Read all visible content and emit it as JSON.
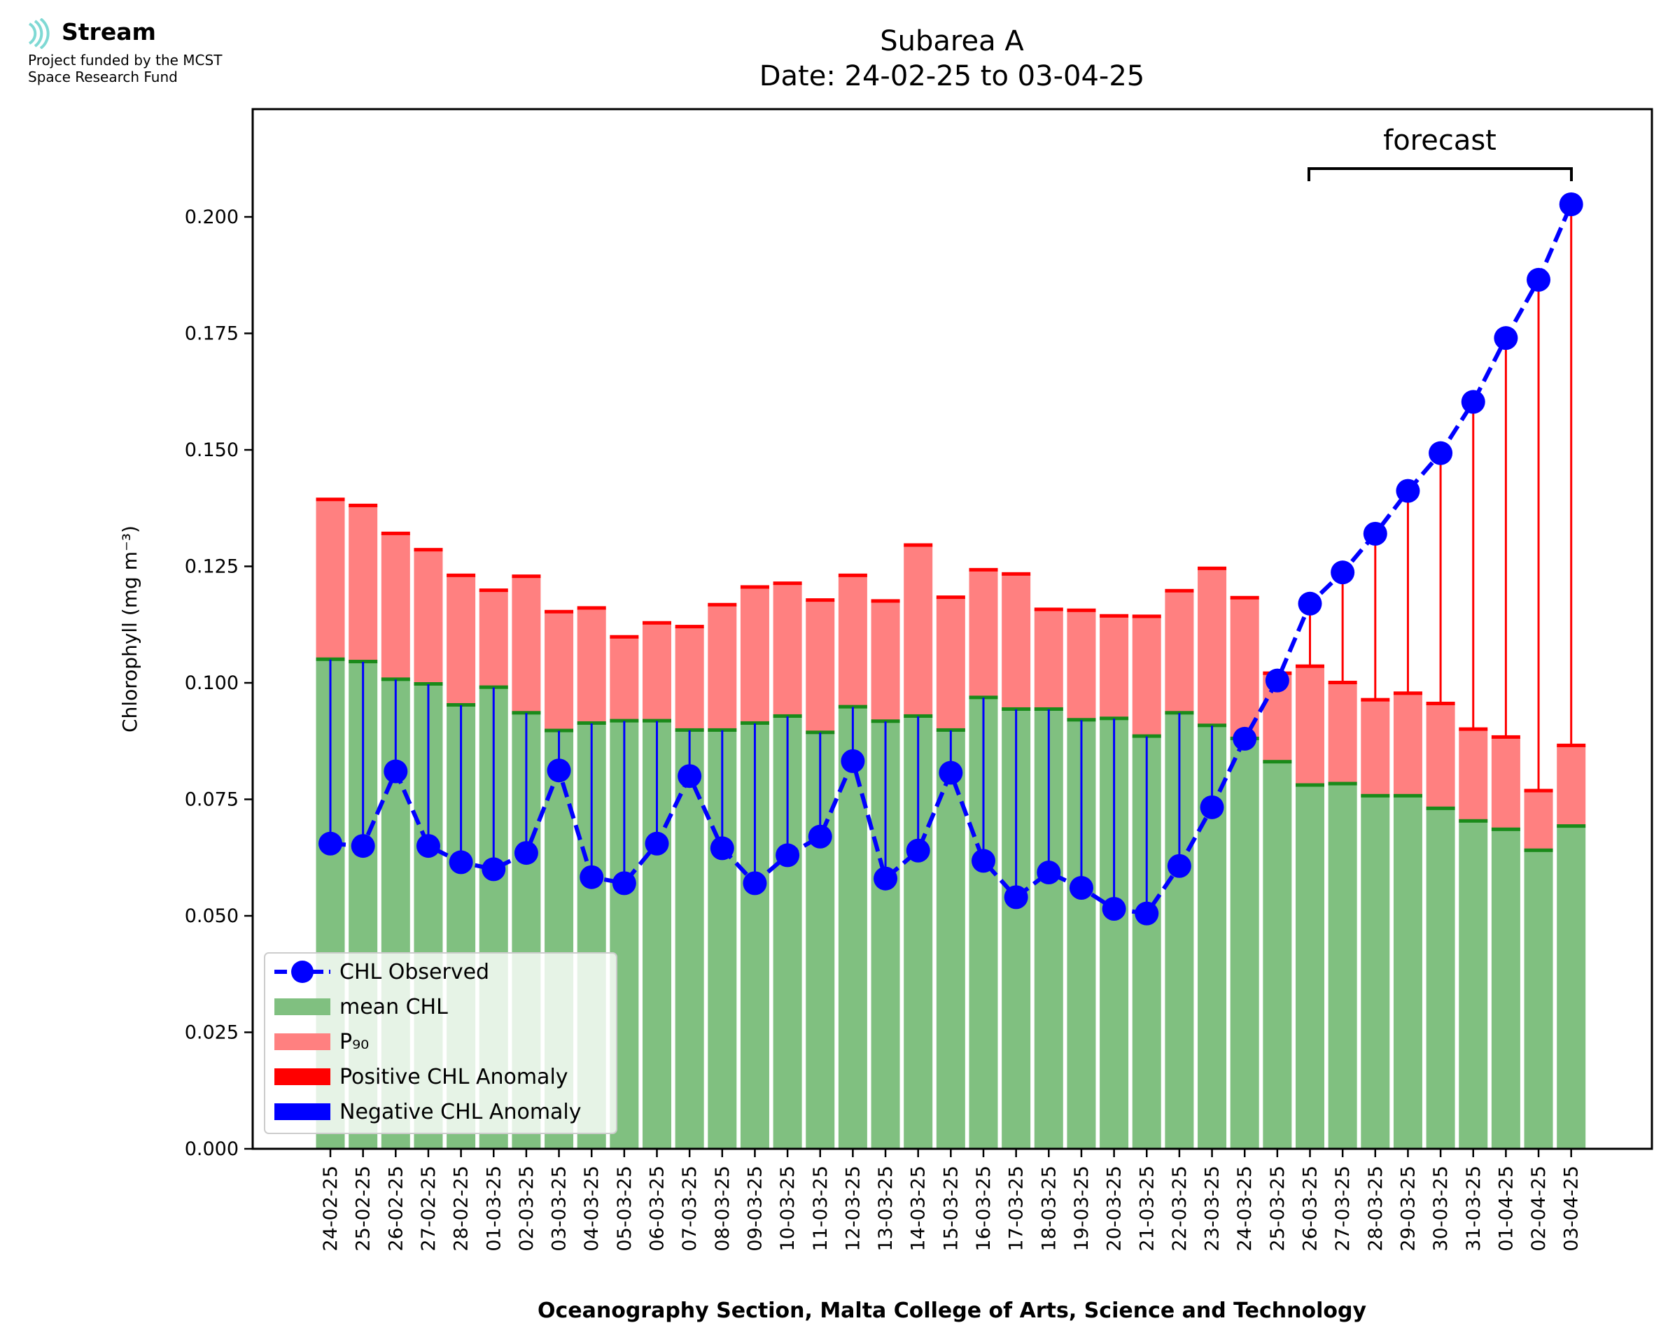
{
  "logo": {
    "name": "Stream",
    "line1": "Project funded by the MCST",
    "line2": "Space Research Fund",
    "icon": "stream-wave-icon",
    "color": "#7fd9d4"
  },
  "chart_data": {
    "type": "bar",
    "title": "Subarea A",
    "subtitle": "Date: 24-02-25 to 03-04-25",
    "xlabel": "Oceanography Section, Malta College of Arts, Science and Technology",
    "ylabel": "Chlorophyll (mg m⁻³)",
    "ylim": [
      0,
      0.2225
    ],
    "yticks": [
      "0.000",
      "0.025",
      "0.050",
      "0.075",
      "0.100",
      "0.125",
      "0.150",
      "0.175",
      "0.200"
    ],
    "categories": [
      "24-02-25",
      "25-02-25",
      "26-02-25",
      "27-02-25",
      "28-02-25",
      "01-03-25",
      "02-03-25",
      "03-03-25",
      "04-03-25",
      "05-03-25",
      "06-03-25",
      "07-03-25",
      "08-03-25",
      "09-03-25",
      "10-03-25",
      "11-03-25",
      "12-03-25",
      "13-03-25",
      "14-03-25",
      "15-03-25",
      "16-03-25",
      "17-03-25",
      "18-03-25",
      "19-03-25",
      "20-03-25",
      "21-03-25",
      "22-03-25",
      "23-03-25",
      "24-03-25",
      "25-03-25",
      "26-03-25",
      "27-03-25",
      "28-03-25",
      "29-03-25",
      "30-03-25",
      "31-03-25",
      "01-04-25",
      "02-04-25",
      "03-04-25"
    ],
    "series": [
      {
        "name": "CHL Observed",
        "type": "line",
        "color": "#0000ff",
        "values": [
          0.0655,
          0.065,
          0.081,
          0.065,
          0.0615,
          0.06,
          0.0635,
          0.0812,
          0.0583,
          0.057,
          0.0655,
          0.08,
          0.0645,
          0.057,
          0.063,
          0.067,
          0.0832,
          0.058,
          0.064,
          0.0807,
          0.0618,
          0.054,
          0.0593,
          0.056,
          0.0515,
          0.0505,
          0.0607,
          0.0733,
          0.088,
          0.1005,
          0.117,
          0.1237,
          0.132,
          0.1412,
          0.1493,
          0.1603,
          0.174,
          0.1865,
          0.2027
        ]
      },
      {
        "name": "mean CHL",
        "type": "bar",
        "color": "#80c080",
        "values": [
          0.105,
          0.1045,
          0.1007,
          0.0997,
          0.0952,
          0.099,
          0.0935,
          0.0897,
          0.0913,
          0.0918,
          0.0918,
          0.0898,
          0.0898,
          0.0913,
          0.0928,
          0.0893,
          0.0948,
          0.0917,
          0.0928,
          0.0898,
          0.0968,
          0.0943,
          0.0943,
          0.092,
          0.0923,
          0.0885,
          0.0935,
          0.0908,
          0.088,
          0.083,
          0.078,
          0.0783,
          0.0757,
          0.0757,
          0.073,
          0.0703,
          0.0685,
          0.064,
          0.0692
        ]
      },
      {
        "name": "P₉₀",
        "type": "bar",
        "color": "#ff8080",
        "values": [
          0.1393,
          0.138,
          0.132,
          0.1285,
          0.123,
          0.1198,
          0.1228,
          0.1152,
          0.116,
          0.1098,
          0.1128,
          0.112,
          0.1167,
          0.1205,
          0.1213,
          0.1177,
          0.123,
          0.1175,
          0.1295,
          0.1183,
          0.1242,
          0.1233,
          0.1157,
          0.1155,
          0.1143,
          0.1142,
          0.1197,
          0.1245,
          0.1182,
          0.102,
          0.1035,
          0.1,
          0.0963,
          0.0977,
          0.0955,
          0.09,
          0.0883,
          0.0768,
          0.0865
        ]
      },
      {
        "name": "Positive CHL Anomaly",
        "type": "errorbar",
        "color": "#ff0000"
      },
      {
        "name": "Negative CHL Anomaly",
        "type": "errorbar",
        "color": "#0000ff"
      }
    ],
    "forecast": {
      "label": "forecast",
      "from": "26-03-25",
      "to": "03-04-25"
    },
    "legend": "lower-left",
    "grid": false
  }
}
